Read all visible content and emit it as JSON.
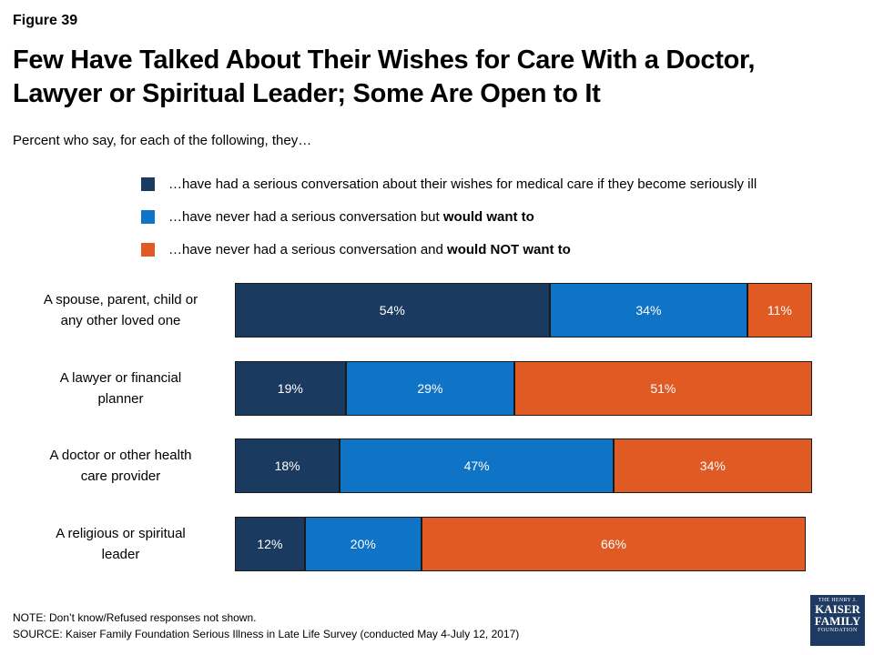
{
  "figure_label": "Figure 39",
  "title_line1": "Few Have Talked About Their Wishes for Care With a Doctor,",
  "title_line2": "Lawyer or Spiritual Leader; Some Are Open to It",
  "subtitle": "Percent who say, for each of the following, they…",
  "legend": [
    {
      "text": "…have had a serious conversation about their wishes for medical care if they become seriously ill",
      "bold": "",
      "color": "#1b3a5f"
    },
    {
      "text": "…have never had a serious conversation but ",
      "bold": "would want to",
      "color": "#0f73c6"
    },
    {
      "text": "…have never had a serious conversation and ",
      "bold": "would NOT want to",
      "color": "#e05a24"
    }
  ],
  "chart_data": {
    "type": "bar",
    "orientation": "horizontal",
    "stacked": true,
    "categories": [
      "A spouse, parent, child or any other loved one",
      "A lawyer or financial planner",
      "A doctor or other health care provider",
      "A religious or spiritual leader"
    ],
    "category_lines": [
      [
        "A spouse, parent, child or",
        "any other loved one"
      ],
      [
        "A lawyer or financial",
        "planner"
      ],
      [
        "A doctor or other health",
        "care provider"
      ],
      [
        "A religious or spiritual",
        "leader"
      ]
    ],
    "series": [
      {
        "name": "…have had a serious conversation about their wishes for medical care if they become seriously ill",
        "color": "#1b3a5f",
        "values": [
          54,
          19,
          18,
          12
        ]
      },
      {
        "name": "…have never had a serious conversation but would want to",
        "color": "#0f73c6",
        "values": [
          34,
          29,
          47,
          20
        ]
      },
      {
        "name": "…have never had a serious conversation and would NOT want to",
        "color": "#e05a24",
        "values": [
          11,
          51,
          34,
          66
        ]
      }
    ],
    "value_suffix": "%",
    "xlim": [
      0,
      100
    ],
    "grid": false,
    "legend_position": "top"
  },
  "note": "NOTE: Don’t know/Refused responses not shown.",
  "source": "SOURCE: Kaiser Family Foundation Serious Illness in Late Life Survey (conducted May 4-July 12, 2017)",
  "logo": {
    "line1": "THE HENRY J.",
    "line2": "KAISER",
    "line3": "FAMILY",
    "line4": "FOUNDATION"
  }
}
